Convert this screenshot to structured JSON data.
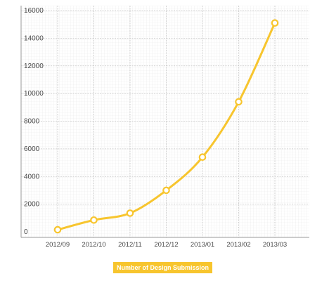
{
  "chart_data": {
    "type": "line",
    "title": "",
    "xlabel": "",
    "ylabel": "",
    "categories": [
      "2012/09",
      "2012/10",
      "2012/11",
      "2012/12",
      "2013/01",
      "2013/02",
      "2013/03"
    ],
    "series": [
      {
        "name": "Number of Design Submission",
        "values": [
          150,
          850,
          1350,
          3000,
          5400,
          9400,
          15100
        ]
      }
    ],
    "ylim": [
      0,
      16000
    ],
    "yticks": [
      0,
      2000,
      4000,
      6000,
      8000,
      10000,
      12000,
      14000,
      16000
    ],
    "grid": true,
    "legend_position": "bottom-center",
    "line_color": "#f7c52e"
  }
}
